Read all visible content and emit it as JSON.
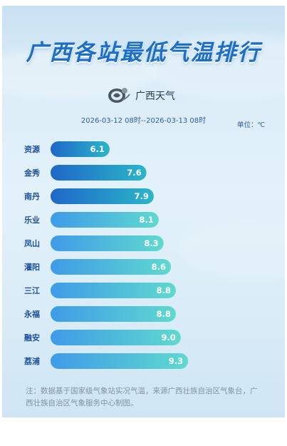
{
  "header": {
    "title": "广西各站最低气温排行",
    "logo_text": "广西天气",
    "date_range": "2026-03-12 08时--2026-03-13 08时",
    "unit": "单位：℃"
  },
  "colors": {
    "title": "#1b6fc6",
    "top_bar_start": "#1f67c8",
    "top_bar_end": "#2bb6c9",
    "bar_start": "#3f9be8",
    "bar_end": "#5fd9cf",
    "label": "#1d4f9c"
  },
  "chart_data": {
    "type": "bar",
    "orientation": "horizontal",
    "title": "广西各站最低气温排行",
    "unit": "℃",
    "categories": [
      "资源",
      "金秀",
      "南丹",
      "乐业",
      "凤山",
      "灌阳",
      "三江",
      "永福",
      "融安",
      "荔浦"
    ],
    "values": [
      6.1,
      7.6,
      7.9,
      8.1,
      8.3,
      8.6,
      8.8,
      8.8,
      9.0,
      9.3
    ],
    "highlighted_count": 3
  },
  "footer": {
    "note": "注：数据基于国家级气象站实况气温，来源广西壮族自治区气象台，广西壮族自治区气象服务中心制图。"
  }
}
